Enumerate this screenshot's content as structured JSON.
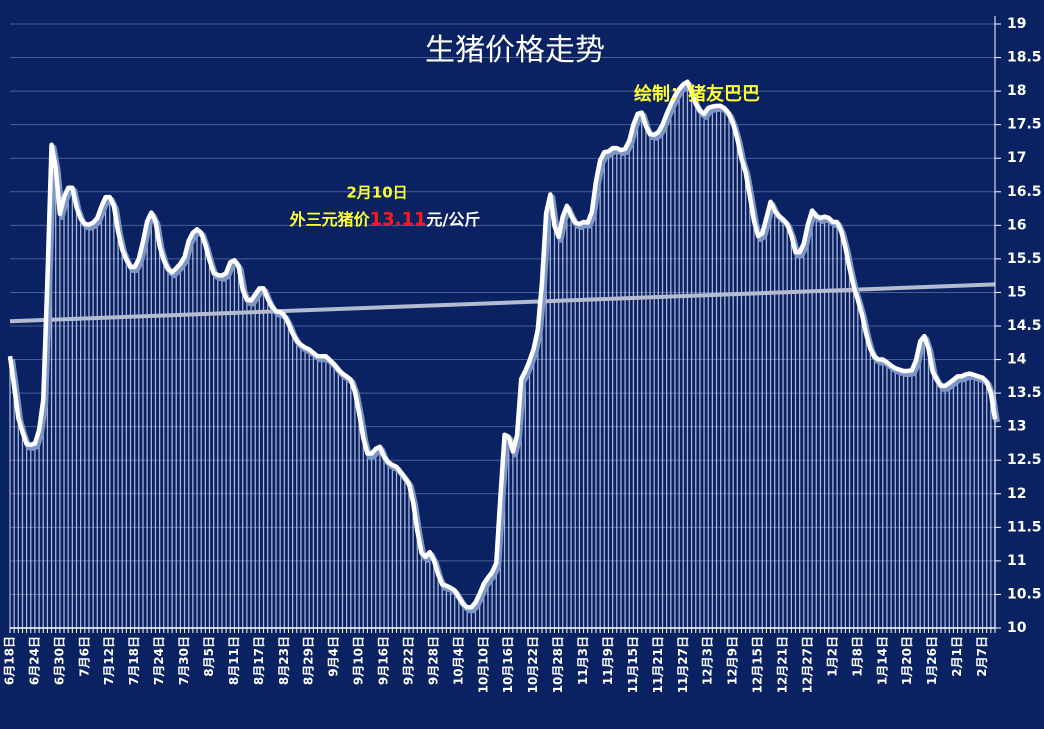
{
  "chart_data": {
    "type": "line",
    "title": "生猪价格走势",
    "annotations": {
      "date": "2月10日",
      "label": "外三元猪价",
      "price": "13.11",
      "unit": "元/公斤",
      "credit": "绘制：猪友巴巴"
    },
    "categories": [
      "6月18日",
      null,
      null,
      null,
      null,
      null,
      "6月24日",
      null,
      null,
      null,
      null,
      null,
      "6月30日",
      null,
      null,
      null,
      null,
      null,
      "7月6日",
      null,
      null,
      null,
      null,
      null,
      "7月12日",
      null,
      null,
      null,
      null,
      null,
      "7月18日",
      null,
      null,
      null,
      null,
      null,
      "7月24日",
      null,
      null,
      null,
      null,
      null,
      "7月30日",
      null,
      null,
      null,
      null,
      null,
      "8月5日",
      null,
      null,
      null,
      null,
      null,
      "8月11日",
      null,
      null,
      null,
      null,
      null,
      "8月17日",
      null,
      null,
      null,
      null,
      null,
      "8月23日",
      null,
      null,
      null,
      null,
      null,
      "8月29日",
      null,
      null,
      null,
      null,
      null,
      "9月4日",
      null,
      null,
      null,
      null,
      null,
      "9月10日",
      null,
      null,
      null,
      null,
      null,
      "9月16日",
      null,
      null,
      null,
      null,
      null,
      "9月22日",
      null,
      null,
      null,
      null,
      null,
      "9月28日",
      null,
      null,
      null,
      null,
      null,
      "10月4日",
      null,
      null,
      null,
      null,
      null,
      "10月10日",
      null,
      null,
      null,
      null,
      null,
      "10月16日",
      null,
      null,
      null,
      null,
      null,
      "10月22日",
      null,
      null,
      null,
      null,
      null,
      "10月28日",
      null,
      null,
      null,
      null,
      null,
      "11月3日",
      null,
      null,
      null,
      null,
      null,
      "11月9日",
      null,
      null,
      null,
      null,
      null,
      "11月15日",
      null,
      null,
      null,
      null,
      null,
      "11月21日",
      null,
      null,
      null,
      null,
      null,
      "11月27日",
      null,
      null,
      null,
      null,
      null,
      "12月3日",
      null,
      null,
      null,
      null,
      null,
      "12月9日",
      null,
      null,
      null,
      null,
      null,
      "12月15日",
      null,
      null,
      null,
      null,
      null,
      "12月21日",
      null,
      null,
      null,
      null,
      null,
      "12月27日",
      null,
      null,
      null,
      null,
      null,
      "1月2日",
      null,
      null,
      null,
      null,
      null,
      "1月8日",
      null,
      null,
      null,
      null,
      null,
      "1月14日",
      null,
      null,
      null,
      null,
      null,
      "1月20日",
      null,
      null,
      null,
      null,
      null,
      "1月26日",
      null,
      null,
      null,
      null,
      null,
      "2月1日",
      null,
      null,
      null,
      null,
      null,
      "2月7日",
      null,
      null,
      null
    ],
    "values": [
      14.05,
      13.6,
      13.13,
      12.92,
      12.74,
      12.73,
      12.75,
      12.95,
      13.4,
      15.2,
      17.2,
      16.85,
      16.17,
      16.42,
      16.56,
      16.56,
      16.27,
      16.1,
      16.02,
      16.01,
      16.04,
      16.11,
      16.28,
      16.42,
      16.42,
      16.29,
      15.91,
      15.64,
      15.49,
      15.38,
      15.38,
      15.5,
      15.76,
      16.06,
      16.19,
      16.06,
      15.69,
      15.48,
      15.35,
      15.3,
      15.36,
      15.43,
      15.53,
      15.77,
      15.89,
      15.94,
      15.89,
      15.71,
      15.48,
      15.29,
      15.26,
      15.25,
      15.29,
      15.45,
      15.48,
      15.39,
      15.04,
      14.89,
      14.88,
      14.97,
      15.06,
      15.06,
      14.91,
      14.79,
      14.72,
      14.71,
      14.66,
      14.54,
      14.39,
      14.28,
      14.22,
      14.18,
      14.15,
      14.1,
      14.05,
      14.05,
      14.05,
      13.99,
      13.93,
      13.85,
      13.79,
      13.75,
      13.7,
      13.52,
      13.2,
      12.83,
      12.6,
      12.6,
      12.67,
      12.7,
      12.55,
      12.47,
      12.43,
      12.4,
      12.32,
      12.24,
      12.15,
      11.87,
      11.45,
      11.12,
      11.06,
      11.13,
      11.01,
      10.8,
      10.65,
      10.63,
      10.6,
      10.56,
      10.46,
      10.36,
      10.31,
      10.31,
      10.38,
      10.51,
      10.66,
      10.75,
      10.83,
      10.97,
      11.96,
      12.88,
      12.85,
      12.63,
      12.87,
      13.71,
      13.83,
      13.98,
      14.16,
      14.45,
      15.15,
      16.18,
      16.46,
      15.99,
      15.83,
      16.13,
      16.29,
      16.15,
      16.04,
      16.02,
      16.05,
      16.04,
      16.2,
      16.66,
      16.97,
      17.09,
      17.1,
      17.15,
      17.15,
      17.12,
      17.14,
      17.26,
      17.5,
      17.66,
      17.68,
      17.48,
      17.36,
      17.35,
      17.39,
      17.5,
      17.66,
      17.8,
      17.93,
      18.03,
      18.1,
      18.14,
      17.98,
      17.81,
      17.71,
      17.66,
      17.75,
      17.77,
      17.78,
      17.78,
      17.74,
      17.66,
      17.51,
      17.29,
      16.99,
      16.79,
      16.44,
      16.07,
      15.84,
      15.88,
      16.11,
      16.35,
      16.22,
      16.14,
      16.09,
      16.02,
      15.85,
      15.6,
      15.6,
      15.73,
      16.02,
      16.22,
      16.14,
      16.11,
      16.13,
      16.11,
      16.05,
      16.05,
      15.91,
      15.67,
      15.36,
      15.09,
      14.89,
      14.67,
      14.38,
      14.16,
      14.04,
      14.0,
      14.0,
      13.96,
      13.91,
      13.87,
      13.85,
      13.83,
      13.83,
      13.84,
      13.99,
      14.27,
      14.35,
      14.16,
      13.82,
      13.7,
      13.61,
      13.61,
      13.65,
      13.7,
      13.75,
      13.75,
      13.78,
      13.79,
      13.77,
      13.75,
      13.73,
      13.67,
      13.5,
      13.11
    ],
    "color": "#ffffff",
    "trendline": {
      "values": [
        14.57,
        15.12
      ],
      "color": "#b4bccf"
    },
    "ylim": [
      10,
      19
    ],
    "yticks": [
      10,
      10.5,
      11,
      11.5,
      12,
      12.5,
      13,
      13.5,
      14,
      14.5,
      15,
      15.5,
      16,
      16.5,
      17,
      17.5,
      18,
      18.5,
      19
    ],
    "grid": true
  }
}
